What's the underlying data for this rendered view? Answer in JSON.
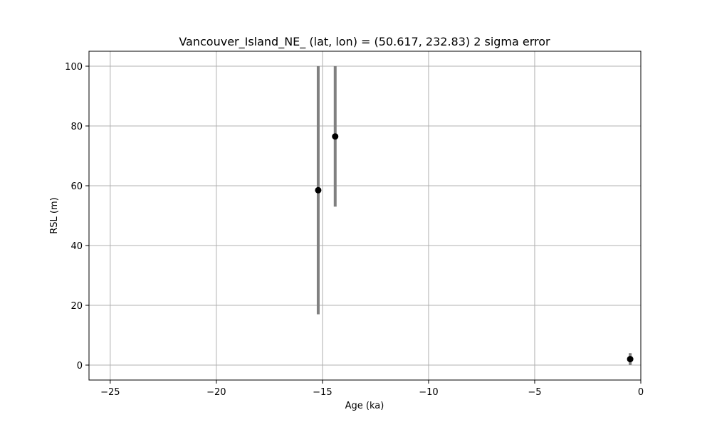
{
  "chart_data": {
    "type": "scatter",
    "title": "Vancouver_Island_NE_ (lat, lon) = (50.617, 232.83)  2 sigma error",
    "xlabel": "Age (ka)",
    "ylabel": "RSL (m)",
    "xlim": [
      -26,
      0
    ],
    "ylim": [
      -5,
      105
    ],
    "xticks": [
      -25,
      -20,
      -15,
      -10,
      -5,
      0
    ],
    "xtick_labels": [
      "−25",
      "−20",
      "−15",
      "−10",
      "−5",
      "0"
    ],
    "yticks": [
      0,
      20,
      40,
      60,
      80,
      100
    ],
    "ytick_labels": [
      "0",
      "20",
      "40",
      "60",
      "80",
      "100"
    ],
    "grid": true,
    "series": [
      {
        "points": [
          {
            "x": -15.2,
            "y": 58.5,
            "ylow": 17,
            "yhigh": 100
          },
          {
            "x": -14.4,
            "y": 76.5,
            "ylow": 53,
            "yhigh": 100
          },
          {
            "x": -0.5,
            "y": 2.0,
            "ylow": 0,
            "yhigh": 4
          }
        ]
      }
    ],
    "colors": {
      "marker": "#000000",
      "errorbar": "#808080",
      "grid": "#b0b0b0",
      "axes": "#000000"
    }
  }
}
